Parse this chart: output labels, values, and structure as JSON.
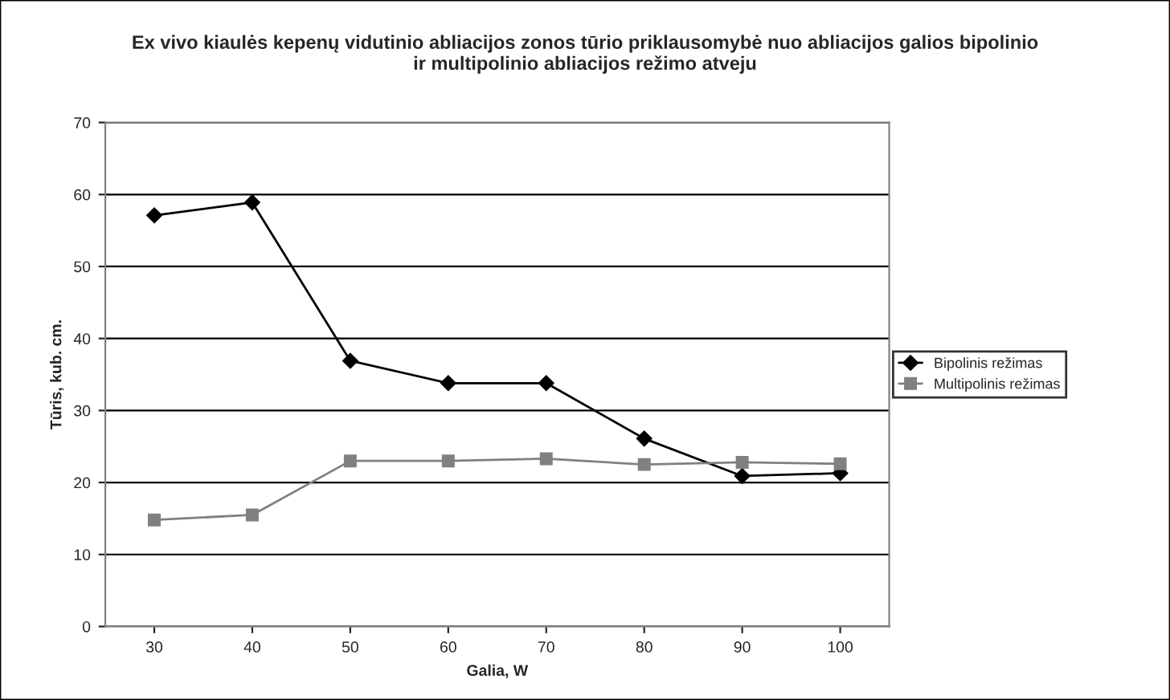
{
  "chart_data": {
    "type": "line",
    "title": "Ex vivo kiaulės kepenų vidutinio abliacijos zonos tūrio priklausomybė nuo abliacijos galios bipolinio\nir multipolinio abliacijos režimo atveju",
    "xlabel": "Galia, W",
    "ylabel": "Tūris, kub. cm.",
    "categories": [
      "30",
      "40",
      "50",
      "60",
      "70",
      "80",
      "90",
      "100"
    ],
    "series": [
      {
        "name": "Bipolinis režimas",
        "color": "#000000",
        "marker": "diamond",
        "values": [
          57.1,
          58.9,
          36.9,
          33.8,
          33.8,
          26.1,
          20.9,
          21.3
        ]
      },
      {
        "name": "Multipolinis režimas",
        "color": "#808080",
        "marker": "square",
        "values": [
          14.8,
          15.5,
          23.0,
          23.0,
          23.3,
          22.5,
          22.8,
          22.6
        ]
      }
    ],
    "ylim": [
      0,
      70
    ],
    "yticks": [
      0,
      10,
      20,
      30,
      40,
      50,
      60,
      70
    ],
    "grid": "y",
    "legend": "right",
    "line_style": "solid"
  }
}
